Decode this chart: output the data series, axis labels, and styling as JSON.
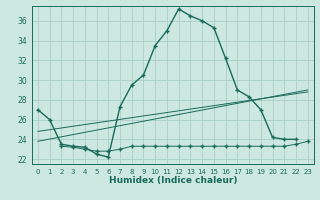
{
  "xlabel": "Humidex (Indice chaleur)",
  "background_color": "#cce8e0",
  "grid_color": "#aad0c8",
  "line_color": "#1a6b5a",
  "xlim": [
    -0.5,
    23.5
  ],
  "ylim": [
    21.5,
    37.5
  ],
  "yticks": [
    22,
    24,
    26,
    28,
    30,
    32,
    34,
    36
  ],
  "xticks": [
    0,
    1,
    2,
    3,
    4,
    5,
    6,
    7,
    8,
    9,
    10,
    11,
    12,
    13,
    14,
    15,
    16,
    17,
    18,
    19,
    20,
    21,
    22,
    23
  ],
  "series_main": {
    "x": [
      0,
      1,
      2,
      3,
      4,
      5,
      6,
      7,
      8,
      9,
      10,
      11,
      12,
      13,
      14,
      15,
      16,
      17,
      18,
      19,
      20,
      21,
      22
    ],
    "y": [
      27.0,
      26.0,
      23.5,
      23.3,
      23.2,
      22.5,
      22.2,
      27.3,
      29.5,
      30.5,
      33.5,
      35.0,
      37.2,
      36.5,
      36.0,
      35.3,
      32.2,
      29.0,
      28.3,
      27.0,
      24.2,
      24.0,
      24.0
    ]
  },
  "series_flat": {
    "x": [
      2,
      3,
      4,
      5,
      6,
      7,
      8,
      9,
      10,
      11,
      12,
      13,
      14,
      15,
      16,
      17,
      18,
      19,
      20,
      21,
      22,
      23
    ],
    "y": [
      23.3,
      23.2,
      23.0,
      22.8,
      22.8,
      23.0,
      23.3,
      23.3,
      23.3,
      23.3,
      23.3,
      23.3,
      23.3,
      23.3,
      23.3,
      23.3,
      23.3,
      23.3,
      23.3,
      23.3,
      23.5,
      23.8
    ]
  },
  "series_diag1": {
    "x": [
      0,
      23
    ],
    "y": [
      23.8,
      29.0
    ]
  },
  "series_diag2": {
    "x": [
      0,
      23
    ],
    "y": [
      24.8,
      28.8
    ]
  }
}
